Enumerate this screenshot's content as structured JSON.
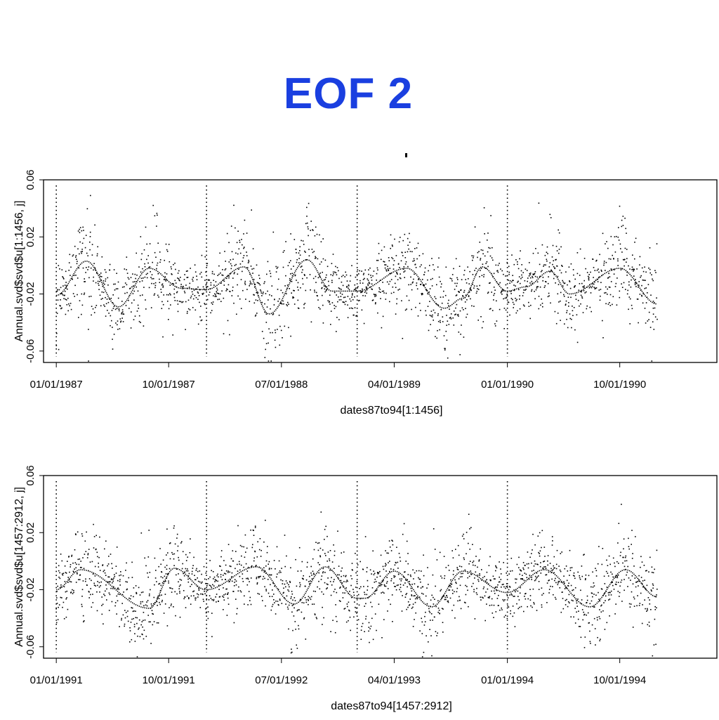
{
  "title": "EOF 2",
  "colors": {
    "title": "#1a3fe0",
    "points": "#000000",
    "axis": "#000000"
  },
  "chart_data": [
    {
      "type": "scatter",
      "xlabel": "dates87to94[1:1456]",
      "ylabel": "Annual.svd$svd$u[1:1456, j]",
      "y_ticks": [
        "0.06",
        "0.02",
        "-0.02",
        "-0.06"
      ],
      "y_tick_values": [
        0.06,
        0.02,
        -0.02,
        -0.06
      ],
      "ylim": [
        -0.068,
        0.06
      ],
      "x_ticks": [
        "01/01/1987",
        "10/01/1987",
        "07/01/1988",
        "04/01/1989",
        "01/01/1990",
        "10/01/1990"
      ],
      "x_tick_values": [
        "1987-01-01",
        "1987-10-01",
        "1988-07-01",
        "1989-04-01",
        "1990-01-01",
        "1990-10-01"
      ],
      "xlim": [
        "1986-12-01",
        "1991-05-25"
      ],
      "date_range": [
        "1987-01-01",
        "1990-12-31"
      ],
      "vertical_dotted_lines_at": [
        "1987-01-01",
        "1988-01-01",
        "1989-01-01",
        "1990-01-01"
      ],
      "smooth_curve": {
        "x": [
          "1987-01-01",
          "1987-03-15",
          "1987-06-01",
          "1987-08-15",
          "1987-11-01",
          "1987-12-31",
          "1988-04-01",
          "1988-06-01",
          "1988-09-01",
          "1988-11-01",
          "1988-12-31",
          "1989-05-01",
          "1989-08-01",
          "1989-09-15",
          "1989-11-01",
          "1989-12-31",
          "1990-02-15",
          "1990-04-15",
          "1990-06-01",
          "1990-10-01",
          "1990-12-31"
        ],
        "y": [
          -0.021,
          0.003,
          -0.029,
          -0.002,
          -0.016,
          -0.017,
          -0.001,
          -0.034,
          0.004,
          -0.018,
          -0.018,
          -0.002,
          -0.03,
          -0.023,
          -0.001,
          -0.018,
          -0.015,
          -0.004,
          -0.02,
          -0.002,
          -0.027
        ]
      }
    },
    {
      "type": "scatter",
      "xlabel": "dates87to94[1457:2912]",
      "ylabel": "Annual.svd$svd$u[1457:2912, j]",
      "y_ticks": [
        "0.06",
        "0.02",
        "-0.02",
        "-0.06"
      ],
      "y_tick_values": [
        0.06,
        0.02,
        -0.02,
        -0.06
      ],
      "ylim": [
        -0.068,
        0.06
      ],
      "x_ticks": [
        "01/01/1991",
        "10/01/1991",
        "07/01/1992",
        "04/01/1993",
        "01/01/1994",
        "10/01/1994"
      ],
      "x_tick_values": [
        "1991-01-01",
        "1991-10-01",
        "1992-07-01",
        "1993-04-01",
        "1994-01-01",
        "1994-10-01"
      ],
      "xlim": [
        "1990-12-01",
        "1995-05-25"
      ],
      "date_range": [
        "1991-01-01",
        "1994-12-31"
      ],
      "vertical_dotted_lines_at": [
        "1991-01-01",
        "1992-01-01",
        "1993-01-01",
        "1994-01-01"
      ],
      "smooth_curve": {
        "x": [
          "1991-01-01",
          "1991-03-01",
          "1991-08-15",
          "1991-10-15",
          "1991-12-31",
          "1992-05-01",
          "1992-08-01",
          "1992-10-15",
          "1992-12-31",
          "1993-01-20",
          "1993-04-01",
          "1993-07-01",
          "1993-09-15",
          "1993-12-31",
          "1994-04-01",
          "1994-07-20",
          "1994-10-15",
          "1994-12-31"
        ],
        "y": [
          -0.02,
          -0.006,
          -0.033,
          -0.005,
          -0.02,
          -0.004,
          -0.03,
          -0.004,
          -0.026,
          -0.026,
          -0.007,
          -0.032,
          -0.007,
          -0.022,
          -0.006,
          -0.032,
          -0.006,
          -0.025
        ]
      }
    }
  ]
}
